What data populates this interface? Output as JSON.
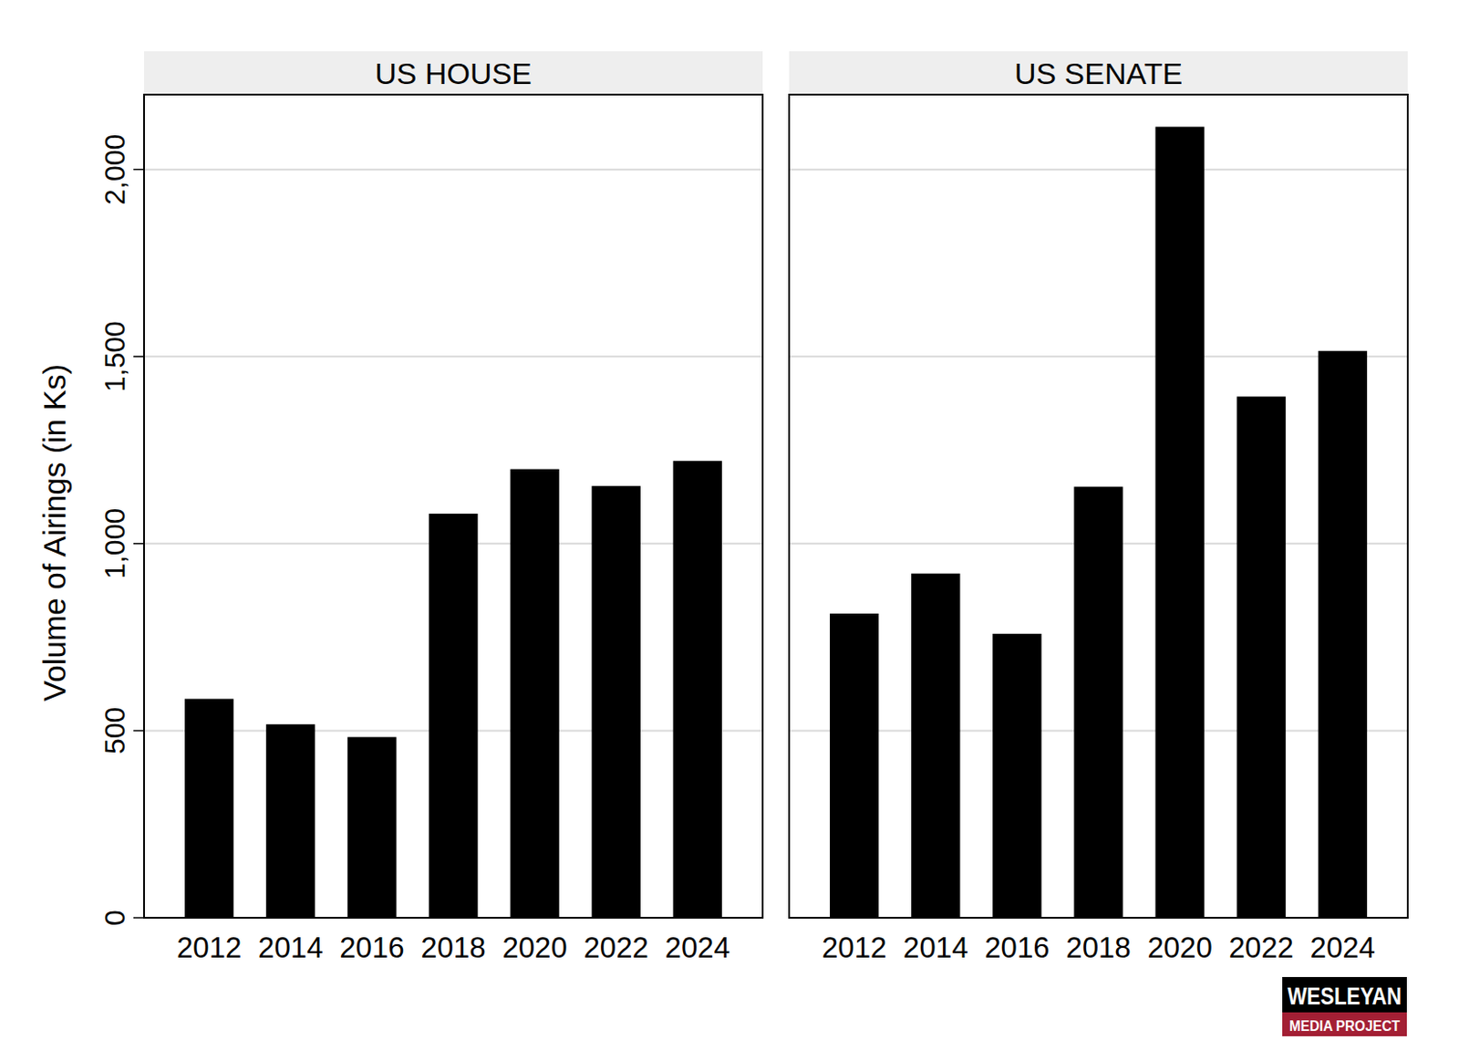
{
  "chart_data": [
    {
      "type": "bar",
      "title": "US HOUSE",
      "y_label": "Volume of Airings (in Ks)",
      "categories": [
        "2012",
        "2014",
        "2016",
        "2018",
        "2020",
        "2022",
        "2024"
      ],
      "values": [
        585,
        517,
        483,
        1080,
        1199,
        1154,
        1221
      ],
      "color": "#000000",
      "ylim": [
        0,
        2200
      ],
      "yticks": [
        0,
        500,
        {
          "value": 1000,
          "label": "1,000"
        },
        {
          "value": 1500,
          "label": "1,500"
        },
        {
          "value": 2000,
          "label": "2,000"
        }
      ],
      "grid": true
    },
    {
      "type": "bar",
      "title": "US SENATE",
      "categories": [
        "2012",
        "2014",
        "2016",
        "2018",
        "2020",
        "2022",
        "2024"
      ],
      "values": [
        813,
        920,
        759,
        1152,
        2114,
        1393,
        1515
      ],
      "color": "#000000",
      "ylim": [
        0,
        2200
      ],
      "yticks": [
        0,
        500,
        {
          "value": 1000,
          "label": "1,000"
        },
        {
          "value": 1500,
          "label": "1,500"
        },
        {
          "value": 2000,
          "label": "2,000"
        }
      ],
      "grid": true,
      "tick_labels": "x"
    }
  ],
  "logo": [
    "WESLEYAN",
    "MEDIA PROJECT"
  ]
}
